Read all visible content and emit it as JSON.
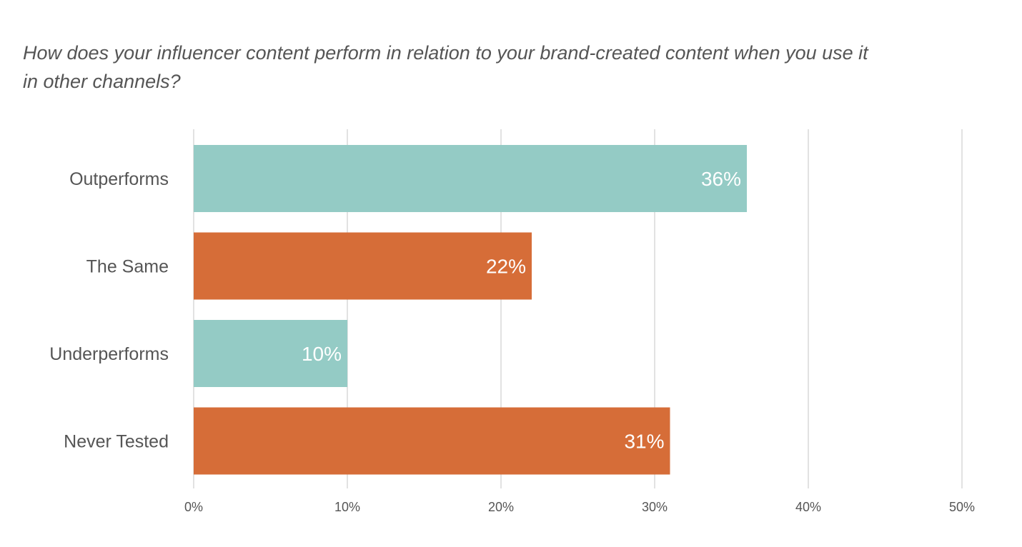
{
  "chart_data": {
    "type": "bar",
    "orientation": "horizontal",
    "title": "How does your influencer content perform in relation to your brand-created content when you use it in other channels?",
    "categories": [
      "Outperforms",
      "The Same",
      "Underperforms",
      "Never Tested"
    ],
    "values": [
      36,
      22,
      10,
      31
    ],
    "data_labels": [
      "36%",
      "22%",
      "10%",
      "31%"
    ],
    "bar_colors": [
      "#94cbc5",
      "#d66d38",
      "#94cbc5",
      "#d66d38"
    ],
    "xlim": [
      0,
      50
    ],
    "x_ticks": [
      0,
      10,
      20,
      30,
      40,
      50
    ],
    "x_tick_labels": [
      "0%",
      "10%",
      "20%",
      "30%",
      "40%",
      "50%"
    ],
    "grid": true,
    "gridline_color": "#d9d9d9",
    "xlabel": "",
    "ylabel": ""
  }
}
